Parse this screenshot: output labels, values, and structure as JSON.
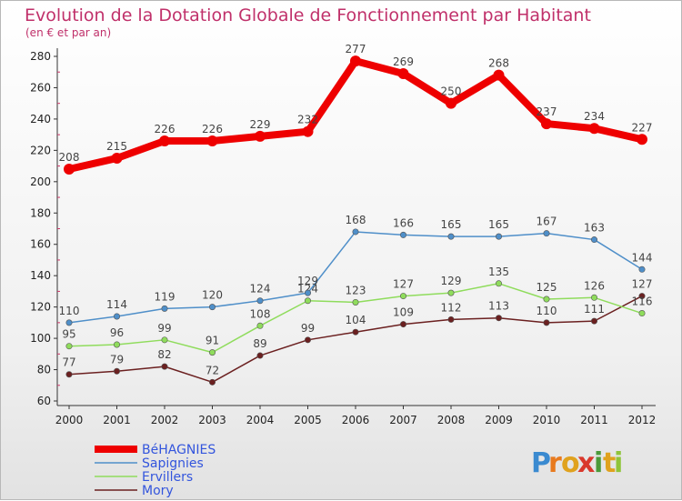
{
  "chart_data": {
    "type": "line",
    "title": "Evolution de la Dotation Globale de Fonctionnement par Habitant",
    "subtitle": "(en € et par an)",
    "xlabel": "",
    "ylabel": "",
    "categories": [
      "2000",
      "2001",
      "2002",
      "2003",
      "2004",
      "2005",
      "2006",
      "2007",
      "2008",
      "2009",
      "2010",
      "2011",
      "2012"
    ],
    "ylim": [
      60,
      280
    ],
    "yticks": [
      60,
      80,
      100,
      120,
      140,
      160,
      180,
      200,
      220,
      240,
      260,
      280
    ],
    "series": [
      {
        "name": "BéHAGNIES",
        "color": "#ee0000",
        "values": [
          208,
          215,
          226,
          226,
          229,
          232,
          277,
          269,
          250,
          268,
          237,
          234,
          227
        ]
      },
      {
        "name": "Sapignies",
        "color": "#4f8fc9",
        "values": [
          110,
          114,
          119,
          120,
          124,
          129,
          168,
          166,
          165,
          165,
          167,
          163,
          144
        ]
      },
      {
        "name": "Ervillers",
        "color": "#8fdc5c",
        "values": [
          95,
          96,
          99,
          91,
          108,
          124,
          123,
          127,
          129,
          135,
          125,
          126,
          116
        ]
      },
      {
        "name": "Mory",
        "color": "#6b2020",
        "values": [
          77,
          79,
          82,
          72,
          89,
          99,
          104,
          109,
          112,
          113,
          110,
          111,
          127
        ]
      }
    ]
  },
  "logo": {
    "letters": [
      "P",
      "r",
      "o",
      "x",
      "i",
      "t",
      "i"
    ],
    "colors": [
      "#3a8ad0",
      "#e87a1e",
      "#e0a21e",
      "#d9382c",
      "#4a9a3a",
      "#e0a21e",
      "#8fc43a"
    ]
  }
}
